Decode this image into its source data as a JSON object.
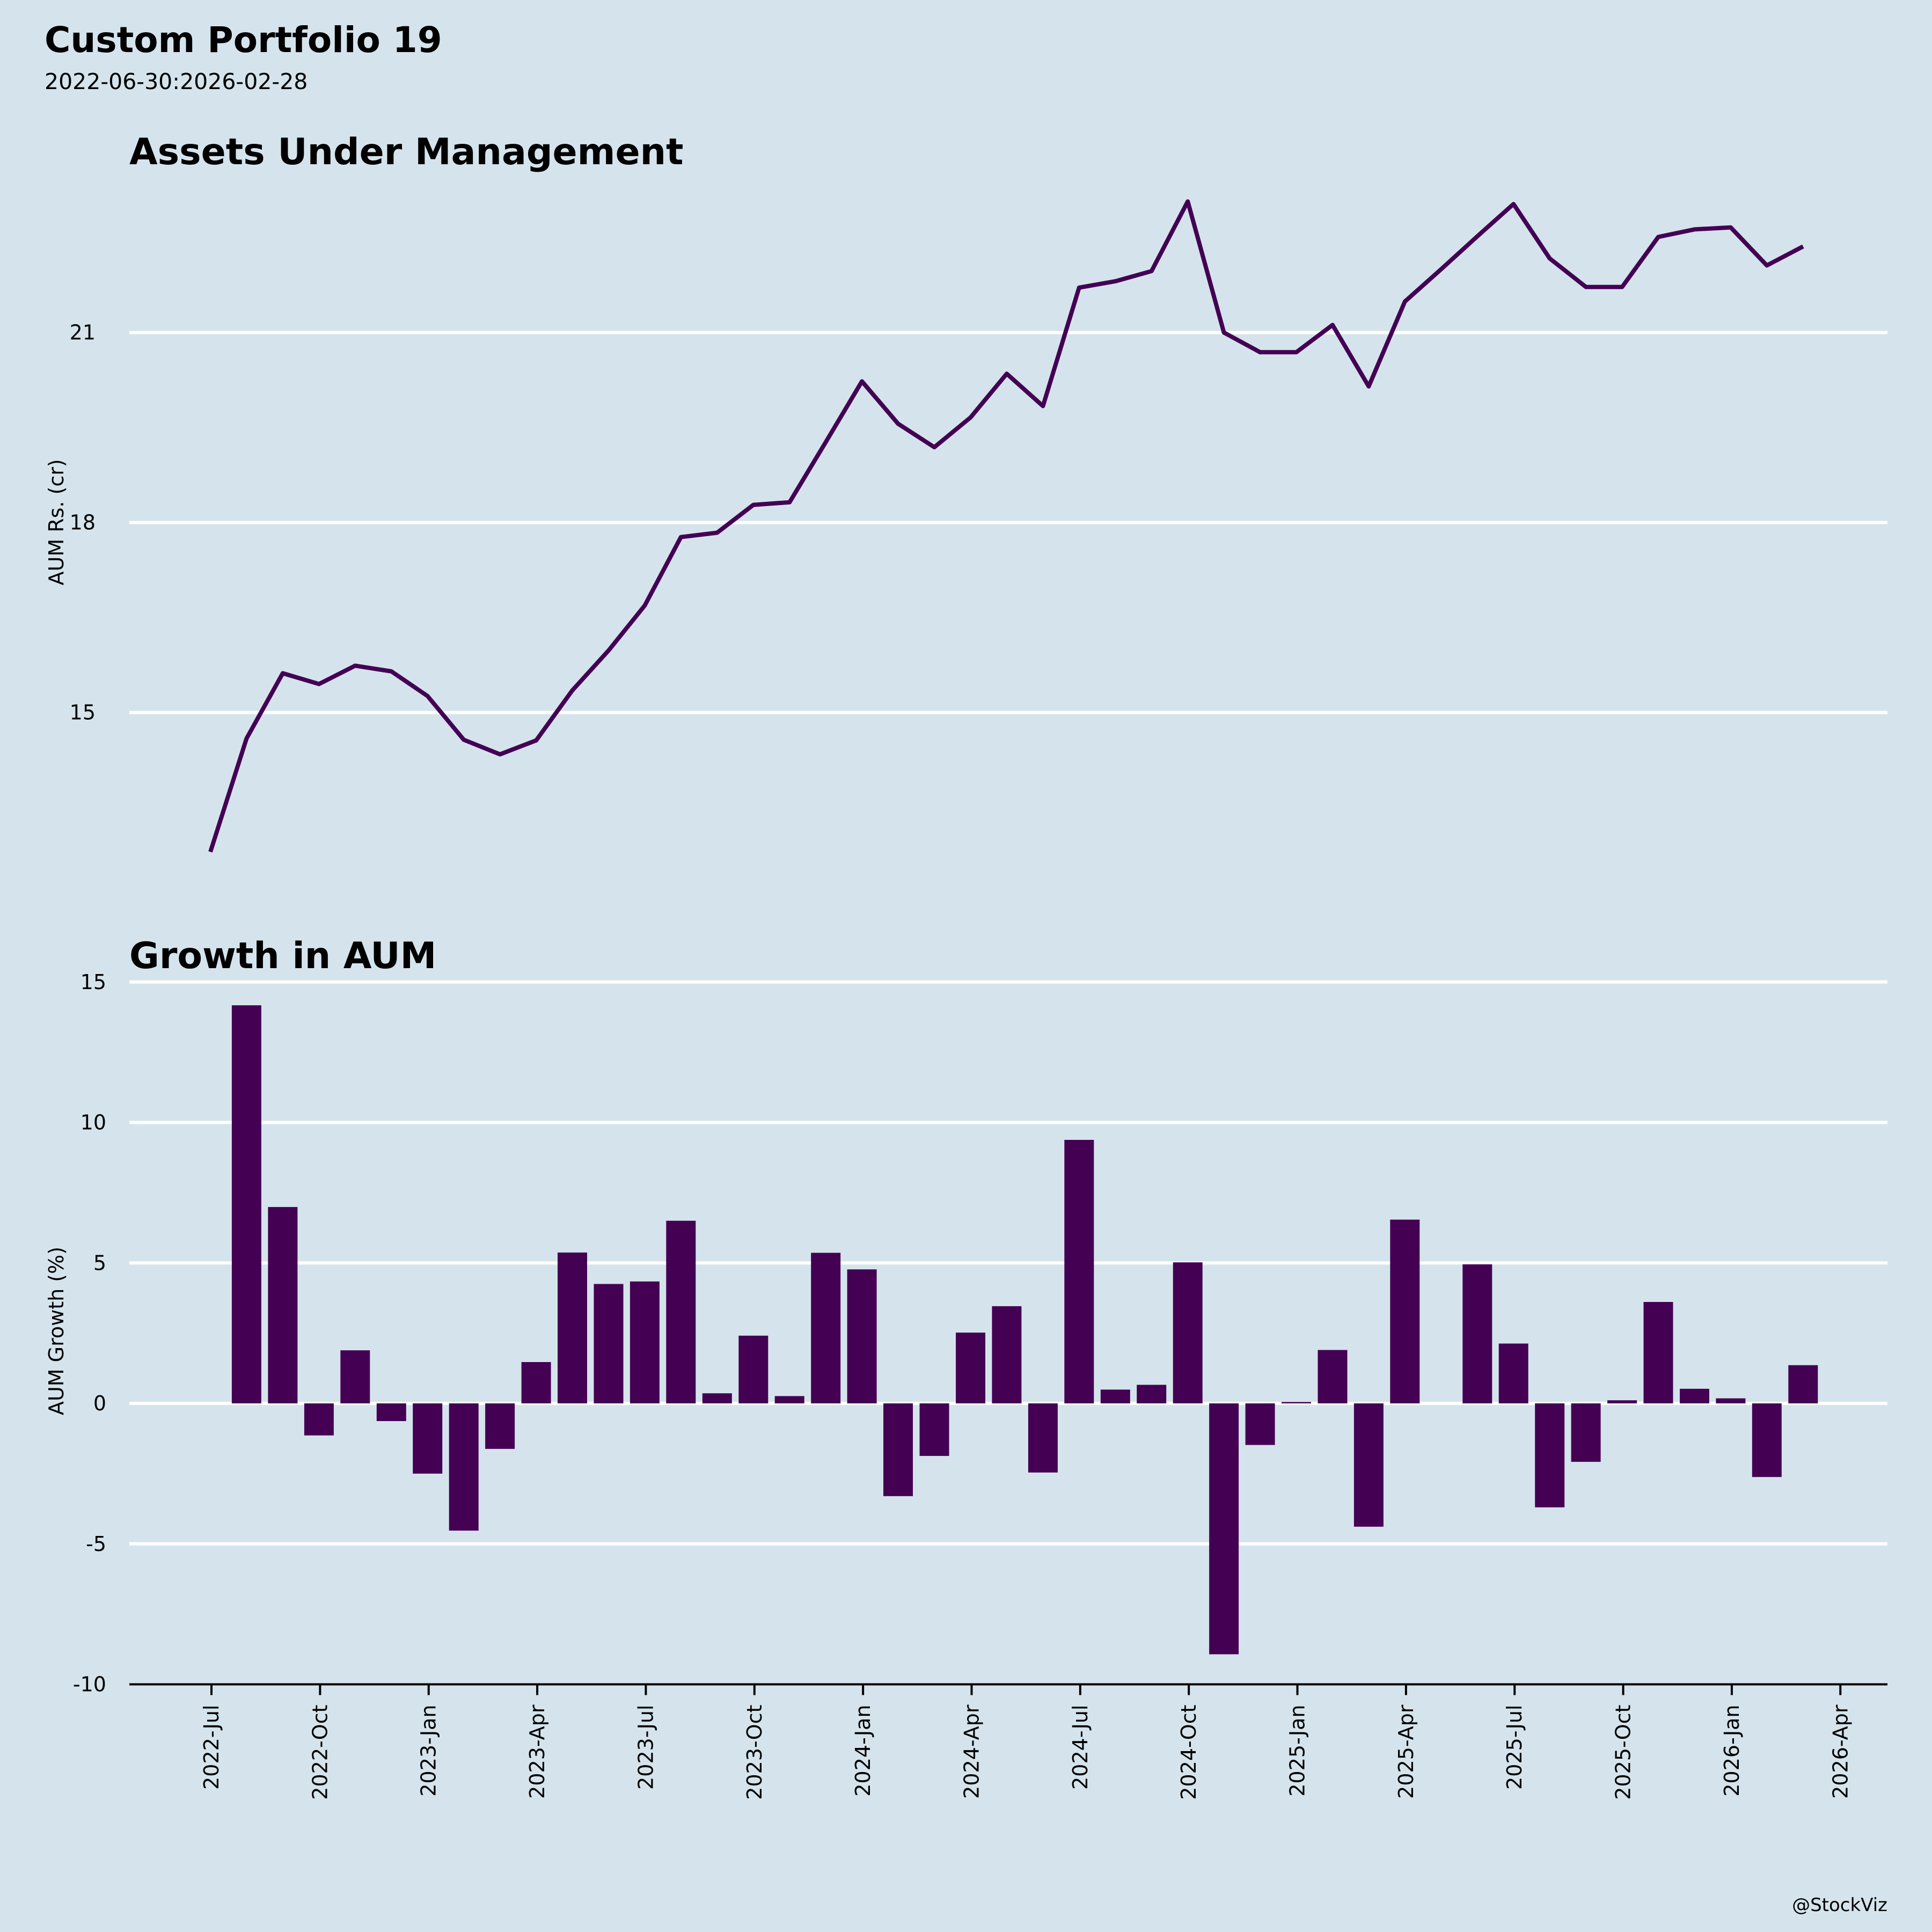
{
  "header": {
    "title": "Custom Portfolio 19",
    "subtitle": "2022-06-30:2026-02-28"
  },
  "watermark": "@StockViz",
  "colors": {
    "background": "#d5e4ec",
    "series": "#440154",
    "grid": "#ffffff",
    "axis": "#000000"
  },
  "chart_data": [
    {
      "type": "line",
      "title": "Assets Under Management",
      "xlabel": "",
      "ylabel": "AUM Rs. (cr)",
      "yticks": [
        15,
        18,
        21
      ],
      "ylim": [
        12.3,
        23.5
      ],
      "grid": "horizontal",
      "x_start": "2022-06-30",
      "x_end": "2026-02-28",
      "x": [
        "2022-06",
        "2022-07",
        "2022-08",
        "2022-09",
        "2022-10",
        "2022-11",
        "2022-12",
        "2023-01",
        "2023-02",
        "2023-03",
        "2023-04",
        "2023-05",
        "2023-06",
        "2023-07",
        "2023-08",
        "2023-09",
        "2023-10",
        "2023-11",
        "2023-12",
        "2024-01",
        "2024-02",
        "2024-03",
        "2024-04",
        "2024-05",
        "2024-06",
        "2024-07",
        "2024-08",
        "2024-09",
        "2024-10",
        "2024-11",
        "2024-12",
        "2025-01",
        "2025-02",
        "2025-03",
        "2025-04",
        "2025-05",
        "2025-06",
        "2025-07",
        "2025-08",
        "2025-09",
        "2025-10",
        "2025-11",
        "2025-12",
        "2026-01",
        "2026-02"
      ],
      "values": [
        12.8,
        14.59,
        15.62,
        15.45,
        15.74,
        15.65,
        15.26,
        14.57,
        14.34,
        14.56,
        15.35,
        15.98,
        16.69,
        17.77,
        17.84,
        18.28,
        18.32,
        19.27,
        20.23,
        19.56,
        19.19,
        19.66,
        20.35,
        19.84,
        21.71,
        21.81,
        21.97,
        23.07,
        21.0,
        20.69,
        20.69,
        21.12,
        20.15,
        21.49,
        22.0,
        22.52,
        23.03,
        22.17,
        21.72,
        21.72,
        22.51,
        22.63,
        22.66,
        22.06,
        22.36
      ]
    },
    {
      "type": "bar",
      "title": "Growth in AUM",
      "xlabel": "",
      "ylabel": "AUM Growth (%)",
      "yticks": [
        15,
        10,
        5,
        0,
        -5,
        -10
      ],
      "ylim": [
        -10,
        15
      ],
      "grid": "horizontal",
      "x": [
        "2022-07",
        "2022-08",
        "2022-09",
        "2022-10",
        "2022-11",
        "2022-12",
        "2023-01",
        "2023-02",
        "2023-03",
        "2023-04",
        "2023-05",
        "2023-06",
        "2023-07",
        "2023-08",
        "2023-09",
        "2023-10",
        "2023-11",
        "2023-12",
        "2024-01",
        "2024-02",
        "2024-03",
        "2024-04",
        "2024-05",
        "2024-06",
        "2024-07",
        "2024-08",
        "2024-09",
        "2024-10",
        "2024-11",
        "2024-12",
        "2025-01",
        "2025-02",
        "2025-03",
        "2025-04",
        "2025-05",
        "2025-06",
        "2025-07",
        "2025-08",
        "2025-09",
        "2025-10",
        "2025-11",
        "2025-12",
        "2026-01",
        "2026-02"
      ],
      "values": [
        14.17,
        6.99,
        -1.14,
        1.89,
        -0.63,
        -2.5,
        -4.53,
        -1.62,
        1.47,
        5.37,
        4.25,
        4.34,
        6.5,
        0.36,
        2.41,
        0.26,
        5.36,
        4.77,
        -3.3,
        -1.87,
        2.52,
        3.46,
        -2.46,
        9.38,
        0.49,
        0.66,
        5.02,
        -8.93,
        -1.48,
        0.05,
        1.9,
        -4.39,
        6.54,
        null,
        4.95,
        2.13,
        -3.7,
        -2.08,
        0.11,
        3.61,
        0.52,
        0.18,
        -2.62,
        1.36
      ],
      "xticks": [
        {
          "date": "2022-07",
          "label": "2022-Jul"
        },
        {
          "date": "2022-10",
          "label": "2022-Oct"
        },
        {
          "date": "2023-01",
          "label": "2023-Jan"
        },
        {
          "date": "2023-04",
          "label": "2023-Apr"
        },
        {
          "date": "2023-07",
          "label": "2023-Jul"
        },
        {
          "date": "2023-10",
          "label": "2023-Oct"
        },
        {
          "date": "2024-01",
          "label": "2024-Jan"
        },
        {
          "date": "2024-04",
          "label": "2024-Apr"
        },
        {
          "date": "2024-07",
          "label": "2024-Jul"
        },
        {
          "date": "2024-10",
          "label": "2024-Oct"
        },
        {
          "date": "2025-01",
          "label": "2025-Jan"
        },
        {
          "date": "2025-04",
          "label": "2025-Apr"
        },
        {
          "date": "2025-07",
          "label": "2025-Jul"
        },
        {
          "date": "2025-10",
          "label": "2025-Oct"
        },
        {
          "date": "2026-01",
          "label": "2026-Jan"
        },
        {
          "date": "2026-04",
          "label": "2026-Apr"
        }
      ]
    }
  ]
}
